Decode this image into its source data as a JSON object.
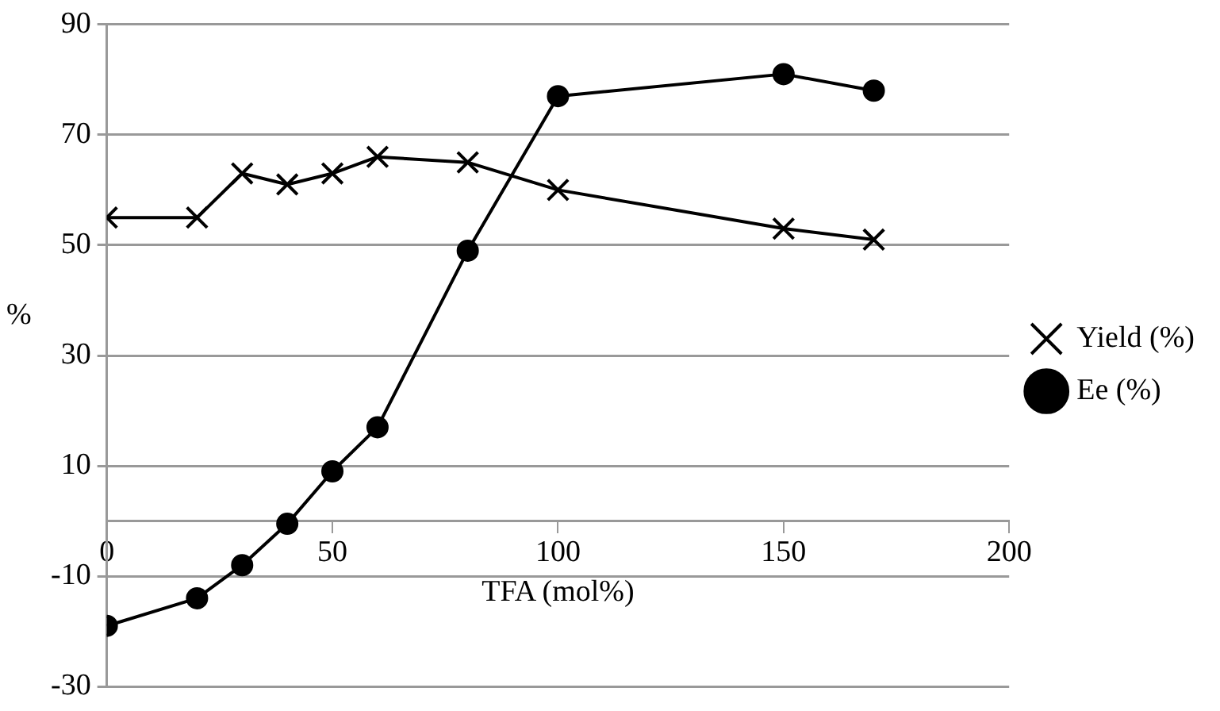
{
  "chart_data": {
    "type": "line",
    "xlabel": "TFA (mol%)",
    "ylabel": "%",
    "xlim": [
      0,
      200
    ],
    "xticks": [
      0,
      50,
      100,
      150,
      200
    ],
    "ylim": [
      -30,
      90
    ],
    "yticks": [
      -30,
      -10,
      10,
      30,
      50,
      70,
      90
    ],
    "grid": "y",
    "legend": "right",
    "line_style": "solid",
    "series": [
      {
        "name": "Yield (%)",
        "color": "#000000",
        "marker": "cross",
        "x": [
          0,
          20,
          30,
          40,
          50,
          60,
          80,
          100,
          150,
          170
        ],
        "values": [
          55,
          55,
          63,
          61,
          63,
          66,
          65,
          60,
          53,
          51
        ]
      },
      {
        "name": "Ee (%)",
        "color": "#000000",
        "marker": "circle",
        "x": [
          0,
          20,
          30,
          40,
          50,
          60,
          80,
          100,
          150,
          170
        ],
        "values": [
          -19,
          -14,
          -8,
          -0.5,
          9,
          17,
          49,
          77,
          81,
          78
        ]
      }
    ]
  }
}
